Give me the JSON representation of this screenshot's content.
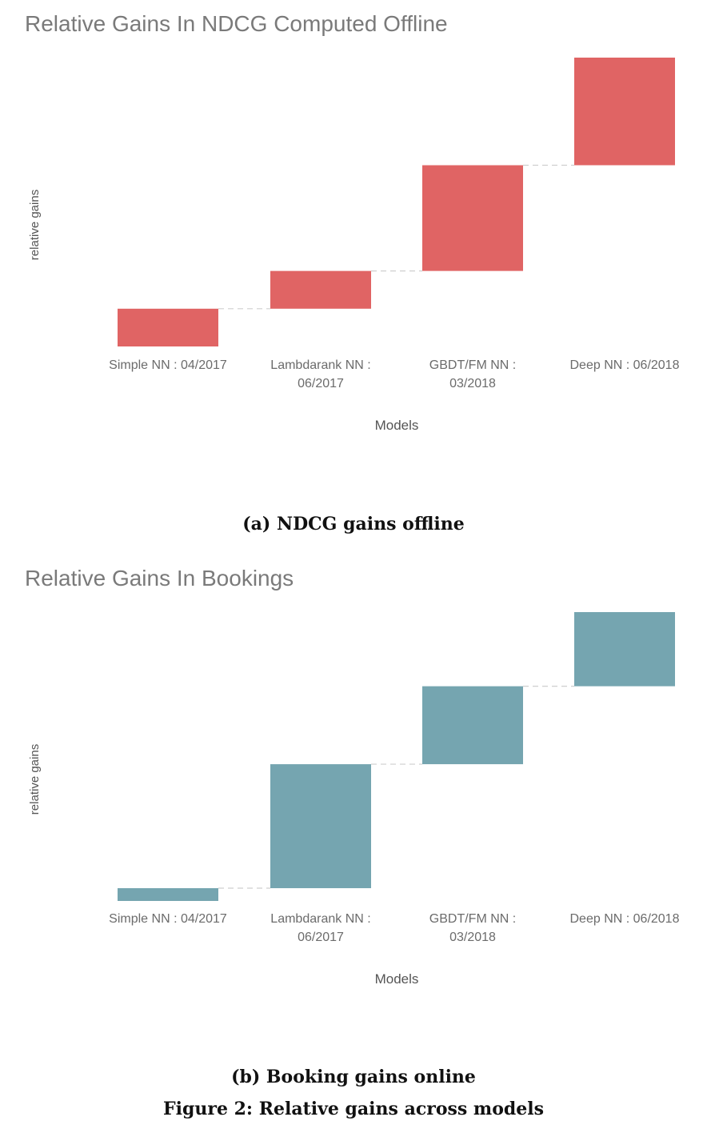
{
  "figure_caption": "Figure 2: Relative gains across models",
  "chart_data": [
    {
      "type": "bar",
      "subtype": "waterfall",
      "title": "Relative Gains In NDCG Computed Offline",
      "caption": "(a) NDCG gains offline",
      "xlabel": "Models",
      "ylabel": "relative gains",
      "color": "#e06464",
      "categories": [
        "Simple NN : 04/2017",
        "Lambdarank NN : 06/2017",
        "GBDT/FM NN : 03/2018",
        "Deep NN : 06/2018"
      ],
      "category_lines": [
        [
          "Simple NN : 04/2017"
        ],
        [
          "Lambdarank NN :",
          "06/2017"
        ],
        [
          "GBDT/FM NN :",
          "03/2018"
        ],
        [
          "Deep NN : 06/2018"
        ]
      ],
      "values": [
        1.0,
        1.0,
        2.8,
        2.85
      ],
      "cumulative": [
        1.0,
        2.0,
        4.8,
        7.65
      ],
      "ylim": [
        0,
        7.65
      ],
      "grid": false,
      "connectors": true
    },
    {
      "type": "bar",
      "subtype": "waterfall",
      "title": "Relative Gains In Bookings",
      "caption": "(b) Booking gains online",
      "xlabel": "Models",
      "ylabel": "relative gains",
      "color": "#75a5b0",
      "categories": [
        "Simple NN : 04/2017",
        "Lambdarank NN : 06/2017",
        "GBDT/FM NN : 03/2018",
        "Deep NN : 06/2018"
      ],
      "category_lines": [
        [
          "Simple NN : 04/2017"
        ],
        [
          "Lambdarank NN :",
          "06/2017"
        ],
        [
          "GBDT/FM NN :",
          "03/2018"
        ],
        [
          "Deep NN : 06/2018"
        ]
      ],
      "values": [
        1.0,
        9.7,
        6.1,
        5.8
      ],
      "cumulative": [
        1.0,
        10.7,
        16.8,
        22.6
      ],
      "ylim": [
        0,
        22.6
      ],
      "grid": false,
      "connectors": true
    }
  ]
}
